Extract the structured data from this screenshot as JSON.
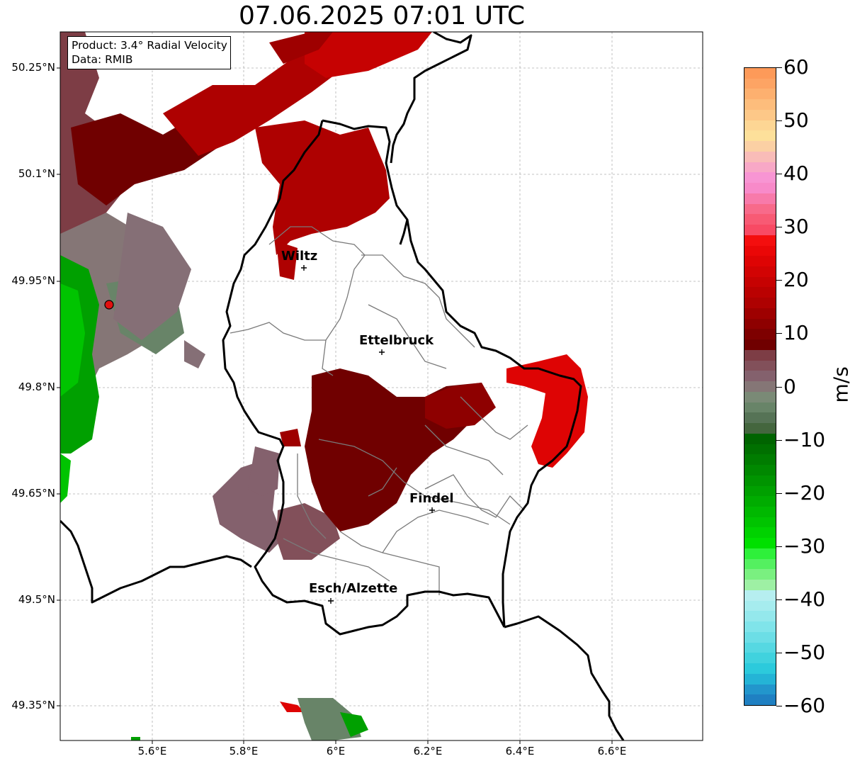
{
  "title": "07.06.2025 07:01 UTC",
  "info": {
    "product": "Product: 3.4° Radial Velocity",
    "source": "Data: RMIB"
  },
  "axes": {
    "lat_labels": [
      "50.25°N",
      "50.1°N",
      "49.95°N",
      "49.8°N",
      "49.65°N",
      "49.5°N",
      "49.35°N"
    ],
    "lon_labels": [
      "5.6°E",
      "5.8°E",
      "6°E",
      "6.2°E",
      "6.4°E",
      "6.6°E"
    ]
  },
  "cities": [
    {
      "name": "Wiltz"
    },
    {
      "name": "Ettelbruck"
    },
    {
      "name": "Findel"
    },
    {
      "name": "Esch/Alzette"
    }
  ],
  "colorbar": {
    "unit": "m/s",
    "min": -60,
    "max": 60,
    "tick_labels": [
      "60",
      "50",
      "40",
      "30",
      "20",
      "10",
      "0",
      "−10",
      "−20",
      "−30",
      "−40",
      "−50",
      "−60"
    ],
    "colors_top_to_bottom": [
      "#fd9a59",
      "#fda464",
      "#fdb06f",
      "#fdbd7c",
      "#fdc888",
      "#fdd694",
      "#fde09a",
      "#fbd0a4",
      "#f9bcb8",
      "#f8a8c6",
      "#f895d3",
      "#f88ac9",
      "#f87aaa",
      "#f86a8a",
      "#f85a74",
      "#f84a64",
      "#f40e0e",
      "#ea0707",
      "#de0404",
      "#d20303",
      "#c60202",
      "#ba0101",
      "#ae0101",
      "#9e0000",
      "#8e0000",
      "#7e0000",
      "#700000",
      "#7d3d45",
      "#82505a",
      "#84616d",
      "#857676",
      "#7a8a76",
      "#688468",
      "#567356",
      "#44663e",
      "#006400",
      "#007000",
      "#007c00",
      "#008800",
      "#009400",
      "#00a000",
      "#00ac00",
      "#00b800",
      "#00c400",
      "#00d200",
      "#00e000",
      "#2ef03a",
      "#54f060",
      "#7af080",
      "#9ef0a4",
      "#b6eef0",
      "#a6ecee",
      "#94e8ec",
      "#80e4ea",
      "#6cdee6",
      "#56d8e2",
      "#40d2de",
      "#2ccadc",
      "#24b4d6",
      "#2296cc",
      "#1f80c2"
    ]
  }
}
